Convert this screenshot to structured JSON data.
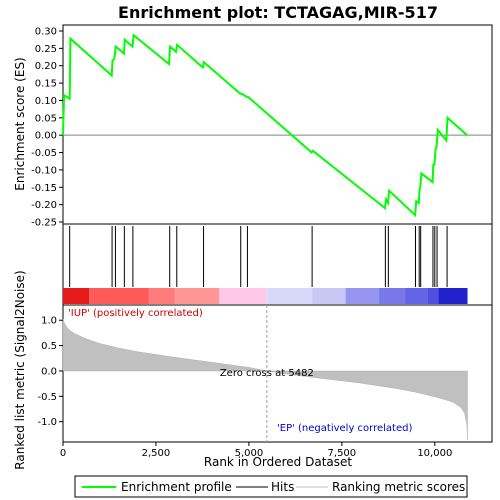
{
  "chart_data": {
    "type": "line",
    "title": "Enrichment plot: TCTAGAG,MIR-517",
    "es_panel": {
      "ylabel": "Enrichment score (ES)",
      "ylim": [
        -0.25,
        0.3
      ],
      "yticks": [
        -0.25,
        -0.2,
        -0.15,
        -0.1,
        -0.05,
        0.0,
        0.05,
        0.1,
        0.15,
        0.2,
        0.25,
        0.3
      ],
      "ytick_labels": [
        "-0.25",
        "-0.20",
        "-0.15",
        "-0.10",
        "-0.05",
        "0.00",
        "0.05",
        "0.10",
        "0.15",
        "0.20",
        "0.25",
        "0.30"
      ],
      "series": [
        {
          "name": "Enrichment profile",
          "color": "#00ff00",
          "x": [
            0,
            30,
            180,
            200,
            1310,
            1330,
            1380,
            1420,
            1640,
            1660,
            1870,
            1900,
            2850,
            2880,
            3040,
            3070,
            3760,
            3790,
            4760,
            4790,
            4950,
            4980,
            6690,
            6720,
            8660,
            8690,
            8740,
            8770,
            9470,
            9500,
            9570,
            9590,
            9610,
            9640,
            9940,
            9960,
            9990,
            10020,
            10050,
            10080,
            10310,
            10340,
            10870
          ],
          "y": [
            0.0,
            0.115,
            0.105,
            0.278,
            0.172,
            0.215,
            0.22,
            0.255,
            0.235,
            0.275,
            0.255,
            0.288,
            0.205,
            0.255,
            0.24,
            0.26,
            0.195,
            0.21,
            0.12,
            0.12,
            0.11,
            0.11,
            -0.05,
            -0.045,
            -0.21,
            -0.185,
            -0.195,
            -0.16,
            -0.23,
            -0.19,
            -0.195,
            -0.155,
            -0.15,
            -0.11,
            -0.135,
            -0.085,
            -0.085,
            -0.04,
            -0.03,
            0.015,
            -0.015,
            0.05,
            0.0
          ]
        }
      ]
    },
    "hits_panel": {
      "legend": "Hits",
      "hit_positions": [
        180,
        1320,
        1410,
        1650,
        1880,
        2870,
        3060,
        3780,
        4780,
        4960,
        6700,
        8670,
        8750,
        9480,
        9580,
        9620,
        9950,
        10000,
        10060,
        10330
      ]
    },
    "metric_panel": {
      "legend": "Ranking metric scores",
      "ylabel": "Ranked list metric (Signal2Noise)",
      "xlabel": "Rank in Ordered Dataset",
      "xlim": [
        0,
        11000
      ],
      "ylim": [
        -1.4,
        1.3
      ],
      "yticks": [
        -1.0,
        -0.5,
        0.0,
        0.5,
        1.0
      ],
      "ytick_labels": [
        "-1.0",
        "-0.5",
        "0.0",
        "0.5",
        "1.0"
      ],
      "xticks": [
        0,
        2500,
        5000,
        7500,
        10000
      ],
      "xtick_labels": [
        "0",
        "2,500",
        "5,000",
        "7,500",
        "10,000"
      ],
      "x": [
        0,
        50,
        150,
        300,
        600,
        1000,
        1500,
        2000,
        3000,
        4000,
        5000,
        5482,
        6000,
        7000,
        8000,
        9000,
        9500,
        10000,
        10300,
        10500,
        10700,
        10800,
        10860,
        10880
      ],
      "y": [
        1.02,
        0.92,
        0.82,
        0.74,
        0.64,
        0.54,
        0.45,
        0.38,
        0.27,
        0.17,
        0.07,
        0.0,
        -0.06,
        -0.15,
        -0.24,
        -0.35,
        -0.42,
        -0.51,
        -0.57,
        -0.62,
        -0.72,
        -0.83,
        -1.05,
        -1.35
      ],
      "zero_cross_rank": 5482,
      "zero_cross_label": "Zero cross at 5482",
      "positive_label": "'IUP' (positively correlated)",
      "negative_label": "'EP' (negatively correlated)",
      "positive_color": "#cc0000",
      "negative_color": "#0000cc"
    },
    "color_bar": {
      "segments": [
        {
          "to": 700,
          "color": "#e61a1a"
        },
        {
          "to": 2300,
          "color": "#ff5a5a"
        },
        {
          "to": 3000,
          "color": "#ff7a7a"
        },
        {
          "to": 4200,
          "color": "#ff9696"
        },
        {
          "to": 5480,
          "color": "#ffc8e6"
        },
        {
          "to": 6700,
          "color": "#d8d8fa"
        },
        {
          "to": 7600,
          "color": "#c8c8f5"
        },
        {
          "to": 8500,
          "color": "#9696f0"
        },
        {
          "to": 9200,
          "color": "#7878eb"
        },
        {
          "to": 9800,
          "color": "#6464e6"
        },
        {
          "to": 10100,
          "color": "#5050e0"
        },
        {
          "to": 10880,
          "color": "#2222cc"
        }
      ]
    },
    "legend_items": [
      {
        "label": "Enrichment profile",
        "color": "#00ff00"
      },
      {
        "label": "Hits",
        "color": "#000000"
      },
      {
        "label": "Ranking metric scores",
        "color": "#c0c0c0"
      }
    ]
  }
}
